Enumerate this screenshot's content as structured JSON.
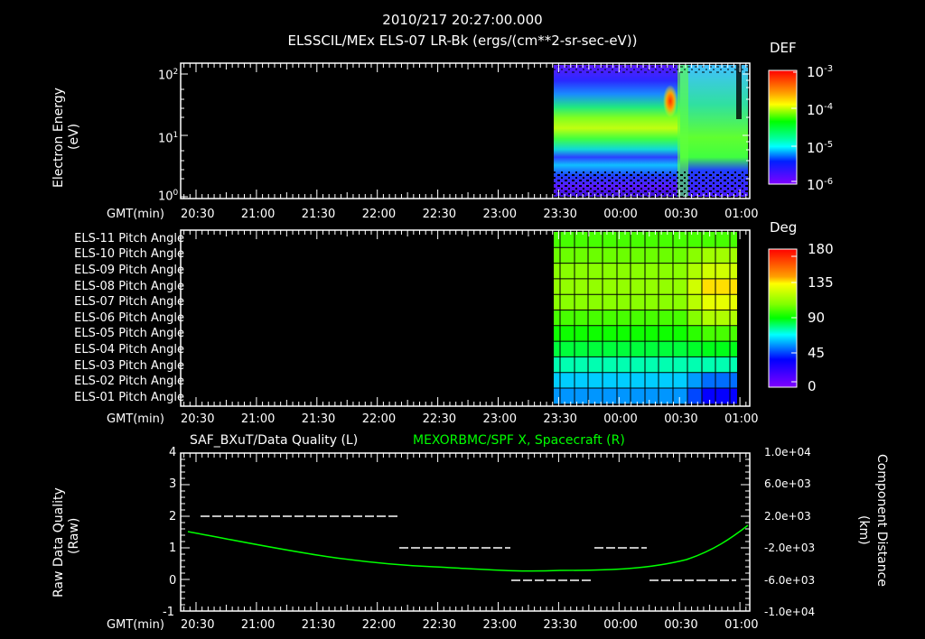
{
  "header": {
    "timestamp": "2010/217 20:27:00.000",
    "subtitle": "ELSSCIL/MEx ELS-07 LR-Bk  (ergs/(cm**2-sr-sec-eV))"
  },
  "time_axis": {
    "label": "GMT(min)",
    "ticks": [
      "20:30",
      "21:00",
      "21:30",
      "22:00",
      "22:30",
      "23:00",
      "23:30",
      "00:00",
      "00:30",
      "01:00"
    ]
  },
  "panel1": {
    "ylabel": "Electron Energy",
    "yunit": "(eV)",
    "yticks": [
      {
        "base": "10",
        "exp": "2"
      },
      {
        "base": "10",
        "exp": "1"
      },
      {
        "base": "10",
        "exp": "0"
      }
    ],
    "colorbar": {
      "title": "DEF",
      "ticks": [
        {
          "base": "10",
          "exp": "-3"
        },
        {
          "base": "10",
          "exp": "-4"
        },
        {
          "base": "10",
          "exp": "-5"
        },
        {
          "base": "10",
          "exp": "-6"
        }
      ]
    }
  },
  "panel2": {
    "rows": [
      "ELS-11 Pitch Angle",
      "ELS-10 Pitch Angle",
      "ELS-09 Pitch Angle",
      "ELS-08 Pitch Angle",
      "ELS-07 Pitch Angle",
      "ELS-06 Pitch Angle",
      "ELS-05 Pitch Angle",
      "ELS-04 Pitch Angle",
      "ELS-03 Pitch Angle",
      "ELS-02 Pitch Angle",
      "ELS-01 Pitch Angle"
    ],
    "colorbar": {
      "title": "Deg",
      "ticks": [
        "180",
        "135",
        "90",
        "45",
        "0"
      ]
    }
  },
  "panel3": {
    "left_title": "SAF_BXuT/Data Quality (L)",
    "right_title": "MEXORBMC/SPF X, Spacecraft (R)",
    "right_title_color": "#00ff00",
    "ylabel_left": "Raw Data Quality",
    "yunit_left": "(Raw)",
    "ylabel_right": "Component Distance",
    "yunit_right": "(km)",
    "left_ticks": [
      "4",
      "3",
      "2",
      "1",
      "0",
      "-1"
    ],
    "right_ticks": [
      "1.0e+04",
      "6.0e+03",
      "2.0e+03",
      "-2.0e+03",
      "-6.0e+03",
      "-1.0e+04"
    ]
  },
  "chart_data": [
    {
      "type": "heatmap",
      "title": "ELSSCIL/MEx ELS-07 LR-Bk (ergs/(cm**2-sr-sec-eV))",
      "xlabel": "GMT(min)",
      "ylabel": "Electron Energy (eV)",
      "x_ticks": [
        "20:30",
        "21:00",
        "21:30",
        "22:00",
        "22:30",
        "23:00",
        "23:30",
        "00:00",
        "00:30",
        "01:00"
      ],
      "y_scale": "log",
      "ylim": [
        1,
        200
      ],
      "colorbar": {
        "label": "DEF",
        "scale": "log",
        "range": [
          1e-06,
          0.001
        ]
      },
      "data_extent": {
        "x_start": "23:27",
        "x_end": "01:05"
      },
      "notes": "Data present only from ~23:27 onward; peak (~1e-3.5) near 30-80 eV around 00:27; bright band ~20-40 eV before 00:35, shifting to ~3-8 eV after 00:45"
    },
    {
      "type": "heatmap",
      "title": "ELS Pitch Angle",
      "xlabel": "GMT(min)",
      "categories": [
        "ELS-11",
        "ELS-10",
        "ELS-09",
        "ELS-08",
        "ELS-07",
        "ELS-06",
        "ELS-05",
        "ELS-04",
        "ELS-03",
        "ELS-02",
        "ELS-01"
      ],
      "colorbar": {
        "label": "Deg",
        "range": [
          0,
          180
        ],
        "ticks": [
          0,
          45,
          90,
          135,
          180
        ]
      },
      "approx_values_deg": [
        100,
        105,
        110,
        112,
        110,
        100,
        92,
        85,
        75,
        62,
        55
      ],
      "late_values_deg": [
        100,
        115,
        125,
        138,
        130,
        118,
        100,
        88,
        75,
        50,
        35
      ],
      "data_extent": {
        "x_start": "23:27",
        "x_end": "00:58"
      }
    },
    {
      "type": "line",
      "title": "SAF_BXuT/Data Quality (L) / MEXORBMC/SPF X, Spacecraft (R)",
      "xlabel": "GMT(min)",
      "ylabel": "Raw Data Quality (Raw)",
      "ylabel_right": "Component Distance (km)",
      "ylim": [
        -1,
        4
      ],
      "ylim_right": [
        -10000,
        10000
      ],
      "x_ticks": [
        "20:30",
        "21:00",
        "21:30",
        "22:00",
        "22:30",
        "23:00",
        "23:30",
        "00:00",
        "00:30",
        "01:00"
      ],
      "series": [
        {
          "name": "Data Quality (L)",
          "color": "#ffffff",
          "style": "dashed",
          "segments": [
            {
              "x_start": "20:34",
              "x_end": "22:07",
              "y": 2
            },
            {
              "x_start": "22:08",
              "x_end": "23:06",
              "y": 1
            },
            {
              "x_start": "23:06",
              "x_end": "23:45",
              "y": 0
            },
            {
              "x_start": "23:46",
              "x_end": "00:11",
              "y": 1
            },
            {
              "x_start": "00:12",
              "x_end": "00:56",
              "y": 0
            }
          ]
        },
        {
          "name": "SPF X, Spacecraft (R)",
          "color": "#00ff00",
          "x": [
            "20:30",
            "21:00",
            "21:30",
            "22:00",
            "22:30",
            "23:00",
            "23:30",
            "00:00",
            "00:30",
            "01:00",
            "01:05"
          ],
          "values": [
            1200,
            200,
            -1000,
            -2000,
            -3000,
            -3800,
            -4200,
            -3700,
            -1500,
            1800,
            2800
          ]
        }
      ]
    }
  ]
}
